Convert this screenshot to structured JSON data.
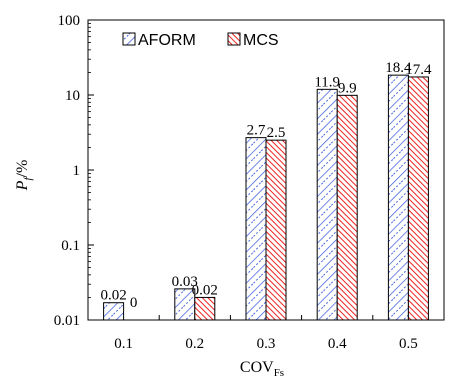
{
  "chart_data": {
    "type": "bar",
    "ylabel_main": "P",
    "ylabel_sub": "f",
    "ylabel_rest": "/%",
    "xlabel_main": "COV",
    "xlabel_sub": "Fs",
    "y_scale": "log",
    "ylim": [
      0.01,
      100
    ],
    "y_ticks": [
      "0.01",
      "0.1",
      "1",
      "10",
      "100"
    ],
    "categories": [
      "0.1",
      "0.2",
      "0.3",
      "0.4",
      "0.5"
    ],
    "legend_position": "top-left",
    "grid": false,
    "series": [
      {
        "name": "AFORM",
        "values": [
          0.017,
          0.026,
          2.7,
          11.9,
          18.4
        ],
        "labels": [
          "0.02",
          "0.03",
          "2.7",
          "11.9",
          "18.4"
        ],
        "color": "#3355dd",
        "pattern": "blue-diagonal-hatch"
      },
      {
        "name": "MCS",
        "values": [
          null,
          0.02,
          2.5,
          9.9,
          17.4
        ],
        "labels": [
          "0",
          "0.02",
          "2.5",
          "9.9",
          "17.4"
        ],
        "color": "#ee2222",
        "pattern": "red-diagonal-hatch"
      }
    ]
  }
}
